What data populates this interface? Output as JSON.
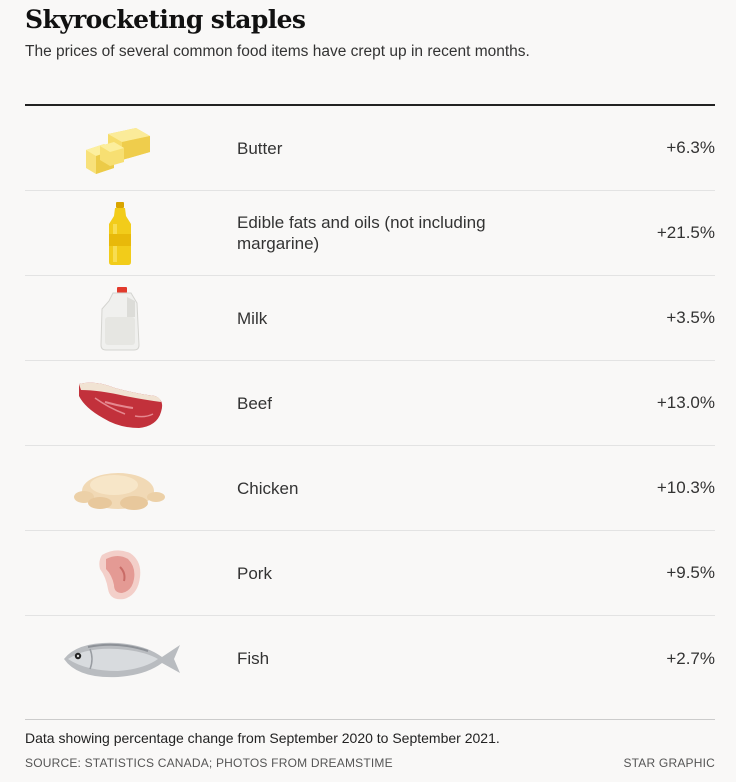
{
  "header": {
    "title": "Skyrocketing staples",
    "subtitle": "The prices of several common food items have crept up in recent months."
  },
  "chart_data": {
    "type": "table",
    "columns": [
      "item",
      "percentage change"
    ],
    "unit": "%",
    "rows": [
      {
        "label": "Butter",
        "value": 6.3,
        "display": "+6.3%",
        "icon": "butter-icon"
      },
      {
        "label": "Edible fats and oils (not including margarine)",
        "value": 21.5,
        "display": "+21.5%",
        "icon": "oil-bottle-icon"
      },
      {
        "label": "Milk",
        "value": 3.5,
        "display": "+3.5%",
        "icon": "milk-jug-icon"
      },
      {
        "label": "Beef",
        "value": 13.0,
        "display": "+13.0%",
        "icon": "beef-steak-icon"
      },
      {
        "label": "Chicken",
        "value": 10.3,
        "display": "+10.3%",
        "icon": "chicken-icon"
      },
      {
        "label": "Pork",
        "value": 9.5,
        "display": "+9.5%",
        "icon": "pork-chop-icon"
      },
      {
        "label": "Fish",
        "value": 2.7,
        "display": "+2.7%",
        "icon": "fish-icon"
      }
    ]
  },
  "footer": {
    "note": "Data showing percentage change from September 2020 to September 2021.",
    "source": "SOURCE: STATISTICS CANADA; PHOTOS FROM DREAMSTIME",
    "credit": "STAR GRAPHIC"
  }
}
